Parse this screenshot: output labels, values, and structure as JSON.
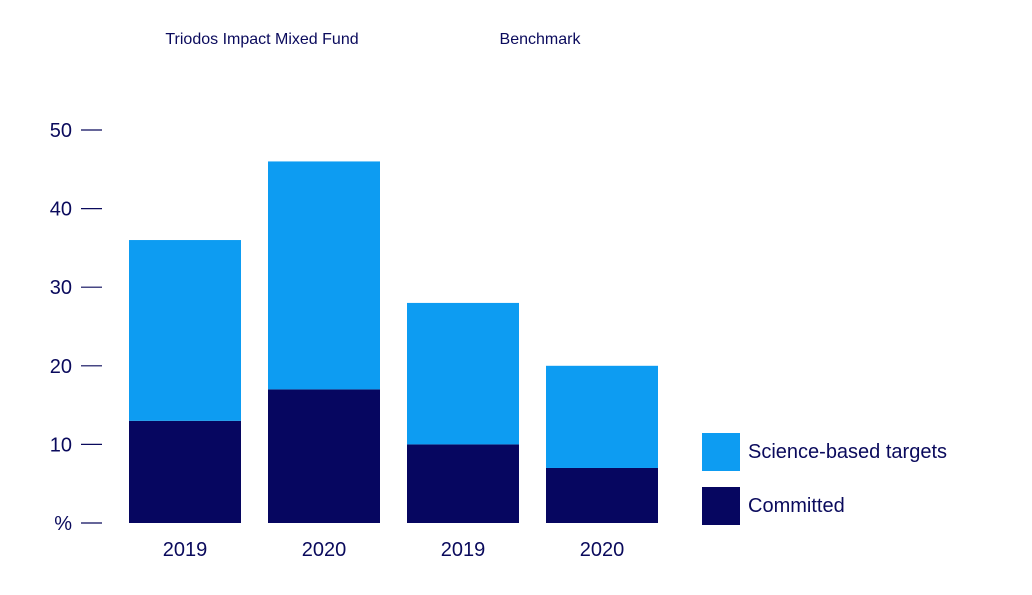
{
  "chart_data": {
    "type": "bar",
    "stacked": true,
    "group_titles": [
      "Triodos Impact Mixed Fund",
      "Benchmark"
    ],
    "categories": [
      "2019",
      "2020",
      "2019",
      "2020"
    ],
    "category_groups": [
      "Triodos Impact Mixed Fund",
      "Triodos Impact Mixed Fund",
      "Benchmark",
      "Benchmark"
    ],
    "series": [
      {
        "name": "Committed",
        "values": [
          13,
          17,
          10,
          7
        ],
        "color": "#060660"
      },
      {
        "name": "Science-based targets",
        "values": [
          23,
          29,
          18,
          13
        ],
        "color": "#0d9cf2"
      }
    ],
    "y_ticks": [
      "%",
      "10",
      "20",
      "30",
      "40",
      "50"
    ],
    "ylim": [
      0,
      50
    ],
    "legend_position": "right",
    "grid": false,
    "text_color": "#0a0a5c"
  }
}
